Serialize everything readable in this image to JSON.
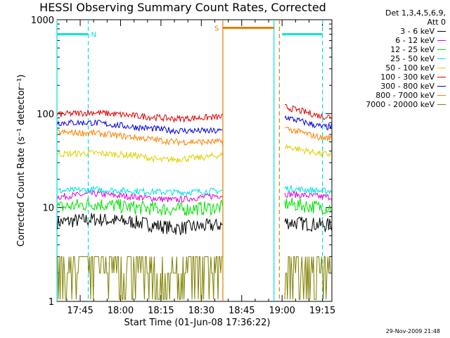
{
  "chart_data": {
    "type": "line",
    "title": "HESSI Observing Summary Count Rates, Corrected",
    "xlabel": "Start Time (01-Jun-08 17:36:22)",
    "ylabel": "Corrected Count Rate (s⁻¹ detector⁻¹)",
    "yscale": "log",
    "ylim": [
      1,
      1000
    ],
    "xlim": [
      "17:36:22",
      "19:18:30"
    ],
    "x_ticks": [
      "17:45",
      "18:00",
      "18:15",
      "18:30",
      "18:45",
      "19:00",
      "19:15"
    ],
    "y_ticks": [
      "1",
      "10",
      "100",
      "1000"
    ],
    "legend_title": [
      "Det 1,3,4,5,6,9,",
      "Att 0"
    ],
    "legend_position": "right",
    "data_gap": [
      "18:38",
      "19:01"
    ],
    "series": [
      {
        "name": "3 - 6 keV",
        "color": "#000000",
        "values": [
          {
            "t": "17:37",
            "y": 7
          },
          {
            "t": "17:50",
            "y": 7.5
          },
          {
            "t": "18:05",
            "y": 7
          },
          {
            "t": "18:20",
            "y": 6
          },
          {
            "t": "18:37",
            "y": 6.5
          },
          {
            "t": "19:01",
            "y": 7
          },
          {
            "t": "19:15",
            "y": 6.5
          }
        ]
      },
      {
        "name": "6 - 12 keV",
        "color": "#e000e0",
        "values": [
          {
            "t": "17:37",
            "y": 13
          },
          {
            "t": "17:50",
            "y": 14
          },
          {
            "t": "18:05",
            "y": 13
          },
          {
            "t": "18:20",
            "y": 12
          },
          {
            "t": "18:37",
            "y": 13.5
          },
          {
            "t": "19:01",
            "y": 14
          },
          {
            "t": "19:15",
            "y": 13
          }
        ]
      },
      {
        "name": "12 - 25 keV",
        "color": "#00e000",
        "values": [
          {
            "t": "17:37",
            "y": 10
          },
          {
            "t": "17:50",
            "y": 11
          },
          {
            "t": "18:05",
            "y": 10
          },
          {
            "t": "18:20",
            "y": 9.5
          },
          {
            "t": "18:37",
            "y": 10
          },
          {
            "t": "19:01",
            "y": 11
          },
          {
            "t": "19:15",
            "y": 10
          }
        ]
      },
      {
        "name": "25 - 50 keV",
        "color": "#00e0e0",
        "values": [
          {
            "t": "17:37",
            "y": 15
          },
          {
            "t": "17:50",
            "y": 15.5
          },
          {
            "t": "18:05",
            "y": 15
          },
          {
            "t": "18:20",
            "y": 14.5
          },
          {
            "t": "18:37",
            "y": 15
          },
          {
            "t": "19:01",
            "y": 16
          },
          {
            "t": "19:15",
            "y": 15
          }
        ]
      },
      {
        "name": "50 - 100 keV",
        "color": "#e0d000",
        "values": [
          {
            "t": "17:37",
            "y": 37
          },
          {
            "t": "17:50",
            "y": 38
          },
          {
            "t": "18:05",
            "y": 36
          },
          {
            "t": "18:15",
            "y": 32
          },
          {
            "t": "18:30",
            "y": 34
          },
          {
            "t": "18:37",
            "y": 36
          },
          {
            "t": "19:01",
            "y": 45
          },
          {
            "t": "19:15",
            "y": 37
          }
        ]
      },
      {
        "name": "100 - 300 keV",
        "color": "#e00000",
        "values": [
          {
            "t": "17:37",
            "y": 98
          },
          {
            "t": "17:50",
            "y": 103
          },
          {
            "t": "18:05",
            "y": 95
          },
          {
            "t": "18:20",
            "y": 88
          },
          {
            "t": "18:37",
            "y": 92
          },
          {
            "t": "19:01",
            "y": 118
          },
          {
            "t": "19:15",
            "y": 93
          }
        ]
      },
      {
        "name": "300 - 800 keV",
        "color": "#0000e0",
        "values": [
          {
            "t": "17:37",
            "y": 80
          },
          {
            "t": "17:50",
            "y": 80
          },
          {
            "t": "18:05",
            "y": 72
          },
          {
            "t": "18:20",
            "y": 66
          },
          {
            "t": "18:37",
            "y": 65
          },
          {
            "t": "19:01",
            "y": 92
          },
          {
            "t": "19:15",
            "y": 72
          }
        ]
      },
      {
        "name": "800 - 7000 keV",
        "color": "#ff8000",
        "values": [
          {
            "t": "17:37",
            "y": 63
          },
          {
            "t": "17:50",
            "y": 62
          },
          {
            "t": "18:05",
            "y": 56
          },
          {
            "t": "18:20",
            "y": 50
          },
          {
            "t": "18:37",
            "y": 50
          },
          {
            "t": "19:01",
            "y": 70
          },
          {
            "t": "19:15",
            "y": 55
          }
        ]
      },
      {
        "name": "7000 - 20000 keV",
        "color": "#808000",
        "values": [
          {
            "t": "17:37",
            "y": 2
          },
          {
            "t": "17:52",
            "y": 3
          },
          {
            "t": "18:05",
            "y": 2
          },
          {
            "t": "18:20",
            "y": 2
          },
          {
            "t": "18:37",
            "y": 3
          },
          {
            "t": "19:01",
            "y": 2
          },
          {
            "t": "19:15",
            "y": 2
          }
        ]
      }
    ],
    "flags": [
      {
        "label": "N",
        "color": "#00e0e0",
        "level": 700,
        "segments": [
          [
            "17:36:22",
            "17:48"
          ],
          [
            "19:00",
            "19:15"
          ]
        ],
        "marker_lines": [
          {
            "t": "17:36:22",
            "style": "solid"
          },
          {
            "t": "17:48",
            "style": "dashed"
          },
          {
            "t": "18:57",
            "style": "solid"
          },
          {
            "t": "19:15",
            "style": "dashed"
          }
        ]
      },
      {
        "label": "S",
        "color": "#e08000",
        "level": 820,
        "segments": [
          [
            "18:38",
            "18:57"
          ]
        ],
        "marker_lines": [
          {
            "t": "18:38",
            "style": "solid"
          },
          {
            "t": "18:59",
            "style": "dashed"
          }
        ]
      }
    ]
  },
  "footer_stamp": "29-Nov-2009 21:48"
}
